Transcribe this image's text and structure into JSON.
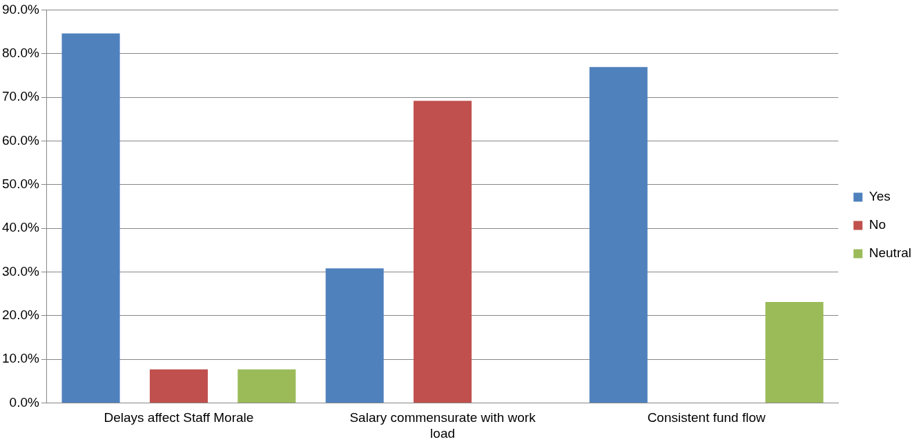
{
  "chart_data": {
    "type": "bar",
    "categories": [
      "Delays affect Staff Morale",
      "Salary commensurate with work load",
      "Consistent fund flow"
    ],
    "series": [
      {
        "name": "Yes",
        "color": "#4f81bd",
        "values": [
          84.6,
          30.8,
          76.9
        ]
      },
      {
        "name": "No",
        "color": "#c0504d",
        "values": [
          7.7,
          69.2,
          0
        ]
      },
      {
        "name": "Neutral",
        "color": "#9bbb59",
        "values": [
          7.7,
          0,
          23.1
        ]
      }
    ],
    "ylim": [
      0,
      90
    ],
    "yticks": [
      {
        "value": 0,
        "label": "0.0%"
      },
      {
        "value": 10,
        "label": "10.0%"
      },
      {
        "value": 20,
        "label": "20.0%"
      },
      {
        "value": 30,
        "label": "30.0%"
      },
      {
        "value": 40,
        "label": "40.0%"
      },
      {
        "value": 50,
        "label": "50.0%"
      },
      {
        "value": 60,
        "label": "60.0%"
      },
      {
        "value": 70,
        "label": "70.0%"
      },
      {
        "value": 80,
        "label": "80.0%"
      },
      {
        "value": 90,
        "label": "90.0%"
      }
    ],
    "grid": "y",
    "legend": "right"
  }
}
